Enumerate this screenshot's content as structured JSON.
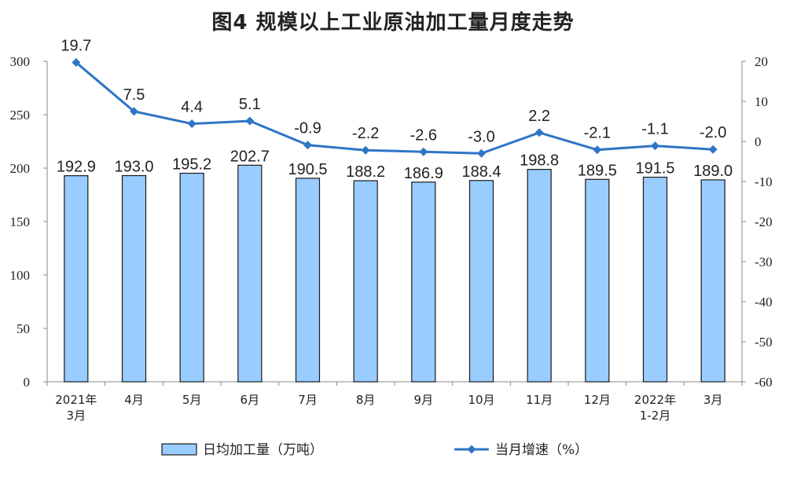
{
  "chart_data": {
    "type": "bar+line",
    "title": "图4  规模以上工业原油加工量月度走势",
    "categories": [
      [
        "2021年",
        "3月"
      ],
      [
        "4月"
      ],
      [
        "5月"
      ],
      [
        "6月"
      ],
      [
        "7月"
      ],
      [
        "8月"
      ],
      [
        "9月"
      ],
      [
        "10月"
      ],
      [
        "11月"
      ],
      [
        "12月"
      ],
      [
        "2022年",
        "1-2月"
      ],
      [
        "3月"
      ]
    ],
    "series": [
      {
        "name": "日均加工量（万吨）",
        "type": "bar",
        "axis": "left",
        "color": "#99ccff",
        "values": [
          192.9,
          193.0,
          195.2,
          202.7,
          190.5,
          188.2,
          186.9,
          188.4,
          198.8,
          189.5,
          191.5,
          189.0
        ],
        "labels": [
          "192.9",
          "193.0",
          "195.2",
          "202.7",
          "190.5",
          "188.2",
          "186.9",
          "188.4",
          "198.8",
          "189.5",
          "191.5",
          "189.0"
        ]
      },
      {
        "name": "当月增速（%）",
        "type": "line",
        "axis": "right",
        "color": "#2e75c6",
        "values": [
          19.7,
          7.5,
          4.4,
          5.1,
          -0.9,
          -2.2,
          -2.6,
          -3.0,
          2.2,
          -2.1,
          -1.1,
          -2.0
        ],
        "labels": [
          "19.7",
          "7.5",
          "4.4",
          "5.1",
          "-0.9",
          "-2.2",
          "-2.6",
          "-3.0",
          "2.2",
          "-2.1",
          "-1.1",
          "-2.0"
        ]
      }
    ],
    "left_axis": {
      "min": 0,
      "max": 300,
      "ticks": [
        "0",
        "50",
        "100",
        "150",
        "200",
        "250",
        "300"
      ]
    },
    "right_axis": {
      "min": -60,
      "max": 20,
      "ticks": [
        "-60",
        "-50",
        "-40",
        "-30",
        "-20",
        "-10",
        "0",
        "10",
        "20"
      ]
    },
    "grid": false,
    "legend_position": "bottom"
  }
}
